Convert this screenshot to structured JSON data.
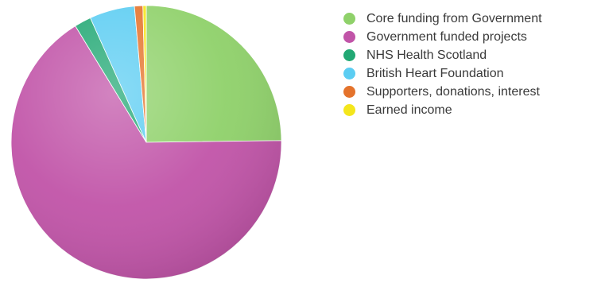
{
  "chart_data": {
    "type": "pie",
    "legend_position": "right",
    "start_angle_deg": 0,
    "direction": "clockwise",
    "slices": [
      {
        "label": "Core funding from Government",
        "value": 24.8,
        "color": "#8fd16a"
      },
      {
        "label": "Government funded projects",
        "value": 66.4,
        "color": "#c154a8"
      },
      {
        "label": "NHS Health Scotland",
        "value": 2.0,
        "color": "#22a874"
      },
      {
        "label": "British Heart Foundation",
        "value": 5.4,
        "color": "#5ccdf2"
      },
      {
        "label": "Supporters, donations, interest",
        "value": 1.0,
        "color": "#e4732c"
      },
      {
        "label": "Earned income",
        "value": 0.4,
        "color": "#f4e61c"
      }
    ]
  }
}
